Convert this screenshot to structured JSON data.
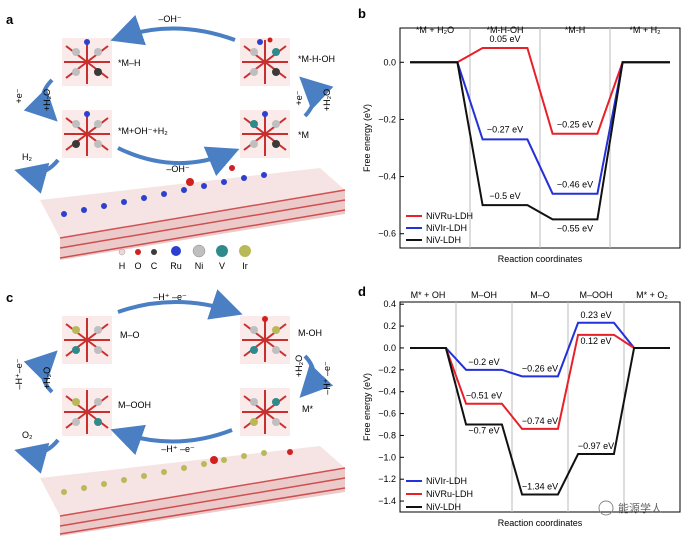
{
  "figure": {
    "panels": {
      "a": "a",
      "b": "b",
      "c": "c",
      "d": "d"
    },
    "watermark": "能源学人"
  },
  "scheme_a": {
    "arrow_top": "–OH⁻",
    "arrow_bottom": "–OH⁻",
    "left_arrow_e": "+e⁻",
    "left_arrow_h2o": "+H₂O",
    "right_arrow_e": "+e⁻",
    "right_arrow_h2o": "+H₂O",
    "h2_out": "H₂",
    "states": {
      "top_left": "*M–H",
      "top_right": "*M-H-OH",
      "bottom_left": "*M+OH⁻+H₂",
      "bottom_right": "*M"
    },
    "atom_legend": [
      "H",
      "O",
      "C",
      "Ru",
      "Ni",
      "V",
      "Ir"
    ],
    "atom_colors": [
      "#f0d6d6",
      "#d21f1f",
      "#3a3a3a",
      "#2d3fcf",
      "#bfbfbf",
      "#2f8b8b",
      "#b9b95a"
    ]
  },
  "scheme_c": {
    "arrow_top": "–H⁺ –e⁻",
    "arrow_bottom": "–H⁺ –e⁻",
    "left_arrow_he": "–H⁺–e⁻",
    "left_arrow_h2o": "+H₂O",
    "right_arrow_he": "–H⁺ –e⁻",
    "right_arrow_h2o": "+H₂O",
    "o2_out": "O₂",
    "states": {
      "top_left": "M–O",
      "top_right": "M-OH",
      "bottom_left": "M–OOH",
      "bottom_right": "M*"
    }
  },
  "chart_data": [
    {
      "panel": "b",
      "type": "line",
      "style": "step-energy-diagram",
      "xlabel": "Reaction coordinates",
      "ylabel": "Free energy (eV)",
      "ylim": [
        -0.65,
        0.12
      ],
      "yticks": [
        0.0,
        -0.2,
        -0.4,
        -0.6
      ],
      "ytick_labels": [
        "0.0",
        "−0.2",
        "−0.4",
        "−0.6"
      ],
      "steps": [
        "*M + H₂O",
        "*M-H-OH",
        "*M-H",
        "*M + H₂"
      ],
      "series": [
        {
          "name": "NiVRu-LDH",
          "color": "#e8202a",
          "values": [
            0.0,
            0.05,
            -0.25,
            0.0
          ]
        },
        {
          "name": "NiVIr-LDH",
          "color": "#2430d8",
          "values": [
            0.0,
            -0.27,
            -0.46,
            0.0
          ]
        },
        {
          "name": "NiV-LDH",
          "color": "#111111",
          "values": [
            0.0,
            -0.5,
            -0.55,
            0.0
          ]
        }
      ],
      "annotations": [
        "0.05 eV",
        "−0.27 eV",
        "−0.5 eV",
        "−0.25 eV",
        "−0.46 eV",
        "−0.55 eV"
      ],
      "legend_position": "bottom-left"
    },
    {
      "panel": "d",
      "type": "line",
      "style": "step-energy-diagram",
      "xlabel": "Reaction coordinates",
      "ylabel": "Free energy (eV)",
      "ylim": [
        -1.5,
        0.42
      ],
      "yticks": [
        0.4,
        0.2,
        0.0,
        -0.2,
        -0.4,
        -0.6,
        -0.8,
        -1.0,
        -1.2,
        -1.4
      ],
      "ytick_labels": [
        "0.4",
        "0.2",
        "0.0",
        "−0.2",
        "−0.4",
        "−0.6",
        "−0.8",
        "−1.0",
        "−1.2",
        "−1.4"
      ],
      "steps": [
        "M* + OH",
        "M–OH",
        "M–O",
        "M–OOH",
        "M* + O₂"
      ],
      "series": [
        {
          "name": "NiVIr-LDH",
          "color": "#2430d8",
          "values": [
            0.0,
            -0.2,
            -0.26,
            0.23,
            0.0
          ]
        },
        {
          "name": "NiVRu-LDH",
          "color": "#e8202a",
          "values": [
            0.0,
            -0.51,
            -0.74,
            0.12,
            0.0
          ]
        },
        {
          "name": "NiV-LDH",
          "color": "#111111",
          "values": [
            0.0,
            -0.7,
            -1.34,
            -0.97,
            0.0
          ]
        }
      ],
      "annotations": [
        "−0.2 eV",
        "−0.51 eV",
        "−0.7 eV",
        "−0.26 eV",
        "−0.74 eV",
        "−1.34 eV",
        "0.23 eV",
        "0.12 eV",
        "−0.97 eV"
      ],
      "legend_position": "bottom-left"
    }
  ]
}
